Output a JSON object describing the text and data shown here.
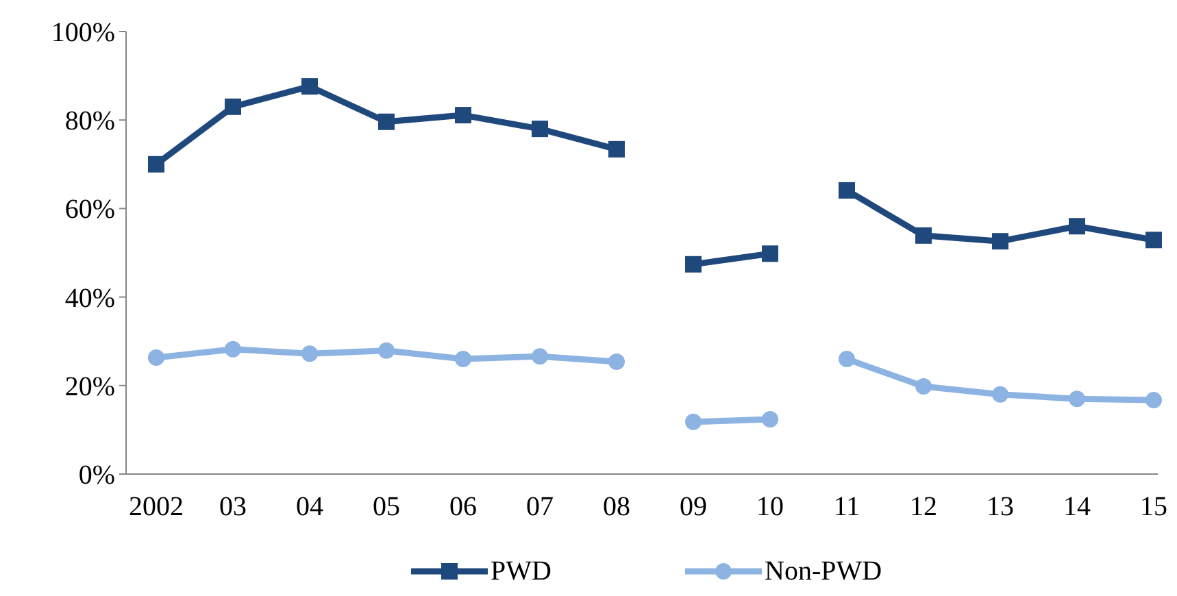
{
  "chart_data": {
    "type": "line",
    "categories": [
      "2002",
      "03",
      "04",
      "05",
      "06",
      "07",
      "08",
      "09",
      "10",
      "11",
      "12",
      "13",
      "14",
      "15"
    ],
    "series": [
      {
        "name": "PWD",
        "color": "#1f497d",
        "marker": "square",
        "values": [
          70.0,
          83.0,
          87.6,
          79.6,
          81.1,
          78.0,
          73.4,
          null,
          null,
          null,
          null,
          null,
          null,
          null
        ]
      },
      {
        "color": "#1f497d",
        "marker": "square",
        "values": [
          null,
          null,
          null,
          null,
          null,
          null,
          null,
          47.4,
          49.8,
          null,
          null,
          null,
          null,
          null
        ]
      },
      {
        "color": "#1f497d",
        "marker": "square",
        "values": [
          null,
          null,
          null,
          null,
          null,
          null,
          null,
          null,
          null,
          64.1,
          53.9,
          52.6,
          56.0,
          52.9
        ]
      },
      {
        "name": "Non-PWD",
        "color": "#8db3e2",
        "marker": "circle",
        "values": [
          26.3,
          28.2,
          27.2,
          27.9,
          26.0,
          26.6,
          25.4,
          null,
          null,
          null,
          null,
          null,
          null,
          null
        ]
      },
      {
        "color": "#8db3e2",
        "marker": "circle",
        "values": [
          null,
          null,
          null,
          null,
          null,
          null,
          null,
          11.8,
          12.4,
          null,
          null,
          null,
          null,
          null
        ]
      },
      {
        "color": "#8db3e2",
        "marker": "circle",
        "values": [
          null,
          null,
          null,
          null,
          null,
          null,
          null,
          null,
          null,
          26.0,
          19.8,
          18.0,
          17.0,
          16.7
        ]
      }
    ],
    "ylim": [
      0,
      100
    ],
    "yticks": [
      {
        "value": 0,
        "label": "0%"
      },
      {
        "value": 20,
        "label": "20%"
      },
      {
        "value": 40,
        "label": "40%"
      },
      {
        "value": 60,
        "label": "60%"
      },
      {
        "value": 80,
        "label": "80%"
      },
      {
        "value": 100,
        "label": "100%"
      }
    ],
    "grid": false,
    "legend": "bottom"
  }
}
